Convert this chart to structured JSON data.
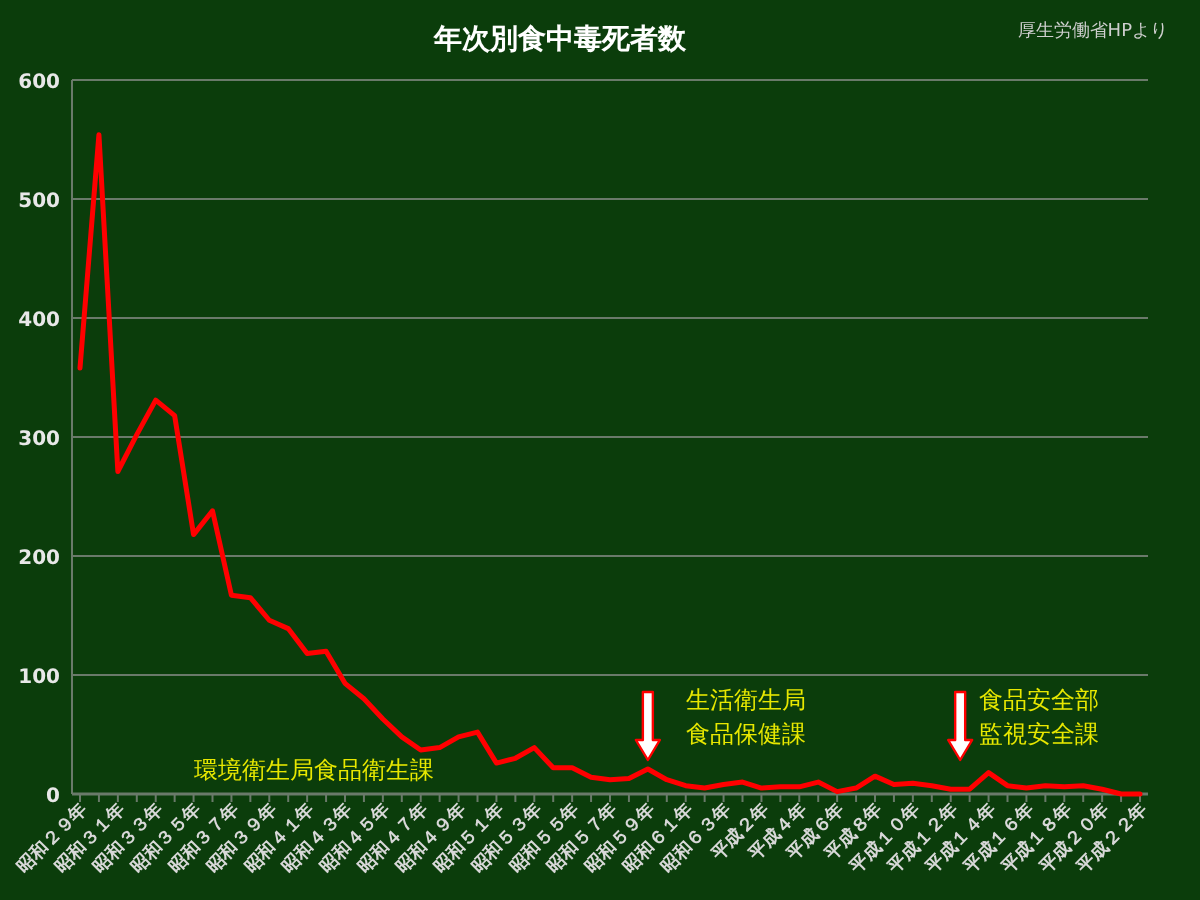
{
  "chart_data": {
    "type": "line",
    "title": "年次別食中毒死者数",
    "categories": [
      "昭和２９年",
      null,
      "昭和３１年",
      null,
      "昭和３３年",
      null,
      "昭和３５年",
      null,
      "昭和３７年",
      null,
      "昭和３９年",
      null,
      "昭和４１年",
      null,
      "昭和４３年",
      null,
      "昭和４５年",
      null,
      "昭和４７年",
      null,
      "昭和４９年",
      null,
      "昭和５１年",
      null,
      "昭和５３年",
      null,
      "昭和５５年",
      null,
      "昭和５７年",
      null,
      "昭和５９年",
      null,
      "昭和６１年",
      null,
      "昭和６３年",
      null,
      "平成２年",
      null,
      "平成４年",
      null,
      "平成６年",
      null,
      "平成８年",
      null,
      "平成１０年",
      null,
      "平成１２年",
      null,
      "平成１４年",
      null,
      "平成１６年",
      null,
      "平成１８年",
      null,
      "平成２０年",
      null,
      "平成２２年"
    ],
    "series": [
      {
        "color": "#ff0000",
        "values": [
          358,
          554,
          271,
          302,
          331,
          318,
          218,
          238,
          167,
          165,
          146,
          139,
          118,
          120,
          93,
          80,
          63,
          48,
          37,
          39,
          48,
          52,
          26,
          30,
          39,
          22,
          22,
          14,
          12,
          13,
          21,
          12,
          7,
          5,
          8,
          10,
          5,
          6,
          6,
          10,
          2,
          5,
          15,
          8,
          9,
          7,
          4,
          4,
          18,
          7,
          5,
          7,
          6,
          7,
          4,
          0,
          0
        ]
      }
    ],
    "ylim": [
      0,
      600
    ],
    "yticks": [
      0,
      100,
      200,
      300,
      400,
      500,
      600
    ],
    "grid": "y",
    "marker": "none",
    "line_style": "solid",
    "annotations": [
      "厚生労働省HPより",
      "環境衛生局食品衛生課",
      "生活衛生局",
      "食品保健課",
      "食品安全部",
      "監視安全課"
    ]
  }
}
